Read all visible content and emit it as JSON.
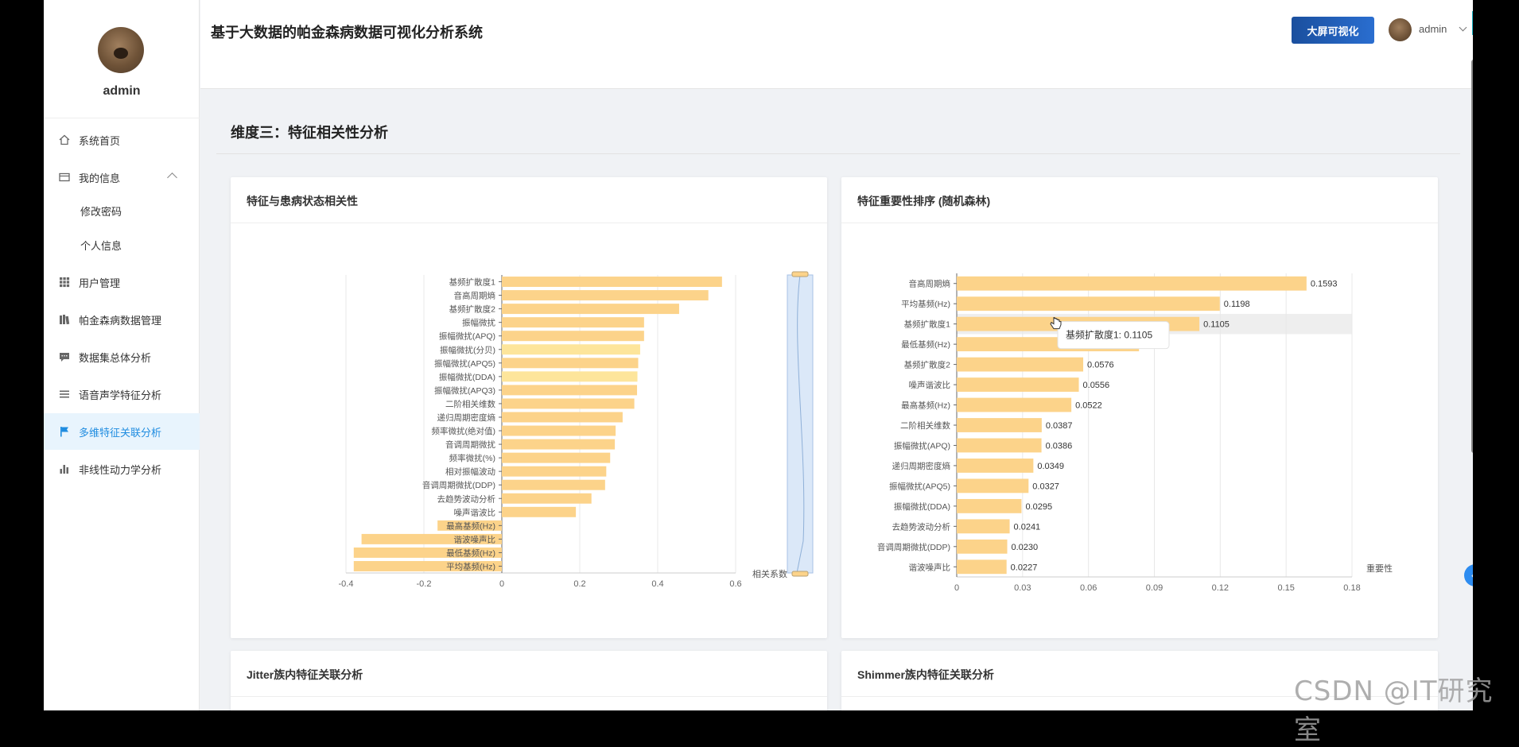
{
  "sidebar": {
    "username": "admin",
    "items": [
      {
        "label": "系统首页"
      },
      {
        "label": "我的信息"
      },
      {
        "label": "修改密码"
      },
      {
        "label": "个人信息"
      },
      {
        "label": "用户管理"
      },
      {
        "label": "帕金森病数据管理"
      },
      {
        "label": "数据集总体分析"
      },
      {
        "label": "语音声学特征分析"
      },
      {
        "label": "多维特征关联分析"
      },
      {
        "label": "非线性动力学分析"
      }
    ]
  },
  "header": {
    "title": "基于大数据的帕金森病数据可视化分析系统",
    "big_screen_button": "大屏可视化",
    "username": "admin"
  },
  "main": {
    "section_title": "维度三：特征相关性分析",
    "cards": [
      {
        "title": "特征与患病状态相关性"
      },
      {
        "title": "特征重要性排序 (随机森林)"
      },
      {
        "title": "Jitter族内特征关联分析"
      },
      {
        "title": "Shimmer族内特征关联分析"
      }
    ]
  },
  "watermark": "CSDN @IT研究室",
  "colors": {
    "bar": "#fcd38a",
    "bar_light": "#fde59b",
    "accent": "#1f8ce0",
    "button": "#1a4f9e"
  },
  "chart_data": [
    {
      "type": "bar",
      "orientation": "horizontal",
      "title": "特征与患病状态相关性",
      "categories": [
        "基频扩散度1",
        "音高周期熵",
        "基频扩散度2",
        "振幅微扰",
        "振幅微扰(APQ)",
        "振幅微扰(分贝)",
        "振幅微扰(APQ5)",
        "振幅微扰(DDA)",
        "振幅微扰(APQ3)",
        "二阶相关维数",
        "递归周期密度熵",
        "频率微扰(绝对值)",
        "音调周期微扰",
        "频率微扰(%)",
        "相对振幅波动",
        "音调周期微扰(DDP)",
        "去趋势波动分析",
        "噪声谐波比",
        "最高基频(Hz)",
        "谐波噪声比",
        "最低基频(Hz)",
        "平均基频(Hz)"
      ],
      "values": [
        0.565,
        0.53,
        0.455,
        0.365,
        0.365,
        0.355,
        0.35,
        0.348,
        0.347,
        0.34,
        0.31,
        0.292,
        0.29,
        0.278,
        0.268,
        0.265,
        0.23,
        0.19,
        -0.165,
        -0.36,
        -0.38,
        -0.38
      ],
      "xlabel": "相关系数",
      "xlim": [
        -0.4,
        0.6
      ],
      "xticks": [
        "-0.4",
        "-0.2",
        "0",
        "0.2",
        "0.4",
        "0.6"
      ],
      "grid": true,
      "datazoom": "vertical slider on right"
    },
    {
      "type": "bar",
      "orientation": "horizontal",
      "title": "特征重要性排序 (随机森林)",
      "categories": [
        "音高周期熵",
        "平均基频(Hz)",
        "基频扩散度1",
        "最低基频(Hz)",
        "基频扩散度2",
        "噪声谐波比",
        "最高基频(Hz)",
        "二阶相关维数",
        "振幅微扰(APQ)",
        "递归周期密度熵",
        "振幅微扰(APQ5)",
        "振幅微扰(DDA)",
        "去趋势波动分析",
        "音调周期微扰(DDP)",
        "谐波噪声比"
      ],
      "values": [
        0.1593,
        0.1198,
        0.1105,
        0.083,
        0.0576,
        0.0556,
        0.0522,
        0.0387,
        0.0386,
        0.0349,
        0.0327,
        0.0295,
        0.0241,
        0.023,
        0.0227
      ],
      "labels": [
        "0.1593",
        "0.1198",
        "0.1105",
        "",
        "0.0576",
        "0.0556",
        "0.0522",
        "0.0387",
        "0.0386",
        "0.0349",
        "0.0327",
        "0.0295",
        "0.0241",
        "0.0230",
        "0.0227"
      ],
      "xlabel": "重要性",
      "xlim": [
        0,
        0.18
      ],
      "xticks": [
        "0",
        "0.03",
        "0.06",
        "0.09",
        "0.12",
        "0.15",
        "0.18"
      ],
      "grid": true,
      "tooltip": {
        "category": "基频扩散度1",
        "text": "基频扩散度1: 0.1105"
      }
    }
  ]
}
